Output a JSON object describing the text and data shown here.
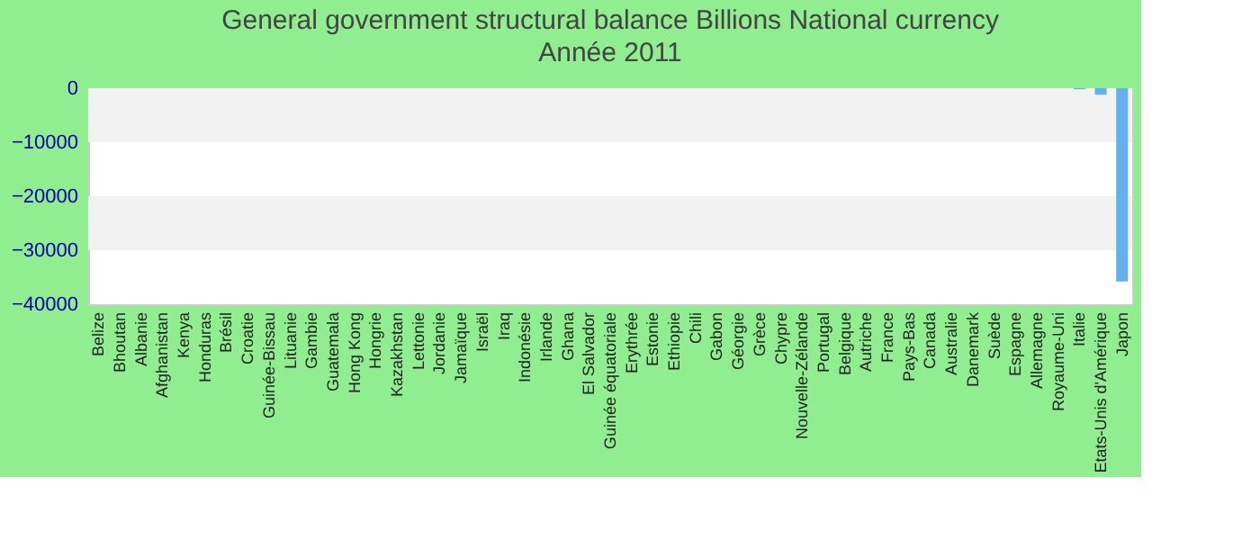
{
  "chart_data": {
    "type": "bar",
    "title": "General government structural balance Billions National currency",
    "subtitle": "Année 2011",
    "categories": [
      "Belize",
      "Bhoutan",
      "Albanie",
      "Afghanistan",
      "Kenya",
      "Honduras",
      "Brésil",
      "Croatie",
      "Guinée-Bissau",
      "Lituanie",
      "Gambie",
      "Guatemala",
      "Hong Kong",
      "Hongrie",
      "Kazakhstan",
      "Lettonie",
      "Jordanie",
      "Jamaïque",
      "Israël",
      "Iraq",
      "Indonésie",
      "Irlande",
      "Ghana",
      "El Salvador",
      "Guinée équatoriale",
      "Erythrée",
      "Estonie",
      "Ethiopie",
      "Chili",
      "Gabon",
      "Géorgie",
      "Grèce",
      "Chypre",
      "Nouvelle-Zélande",
      "Portugal",
      "Belgique",
      "Autriche",
      "France",
      "Pays-Bas",
      "Canada",
      "Australie",
      "Danemark",
      "Suède",
      "Espagne",
      "Allemagne",
      "Royaume-Uni",
      "Italie",
      "Etats-Unis d'Amérique",
      "Japon"
    ],
    "values": [
      0,
      0,
      0,
      0,
      0,
      0,
      0,
      0,
      0,
      0,
      0,
      0,
      0,
      0,
      0,
      0,
      0,
      0,
      0,
      0,
      0,
      0,
      0,
      0,
      0,
      0,
      0,
      0,
      0,
      0,
      0,
      0,
      0,
      0,
      0,
      0,
      0,
      0,
      0,
      0,
      0,
      0,
      0,
      0,
      0,
      0,
      -200,
      -1200,
      -35800
    ],
    "color": "#64aff0",
    "ylim": [
      -40000,
      0
    ],
    "yticks": [
      -40000,
      -30000,
      -20000,
      -10000,
      0
    ],
    "bands": [
      {
        "axis": "y",
        "from": -10000,
        "to": 0,
        "color": "#f2f2f2"
      },
      {
        "axis": "y",
        "from": -30000,
        "to": -20000,
        "color": "#f2f2f2"
      }
    ]
  }
}
